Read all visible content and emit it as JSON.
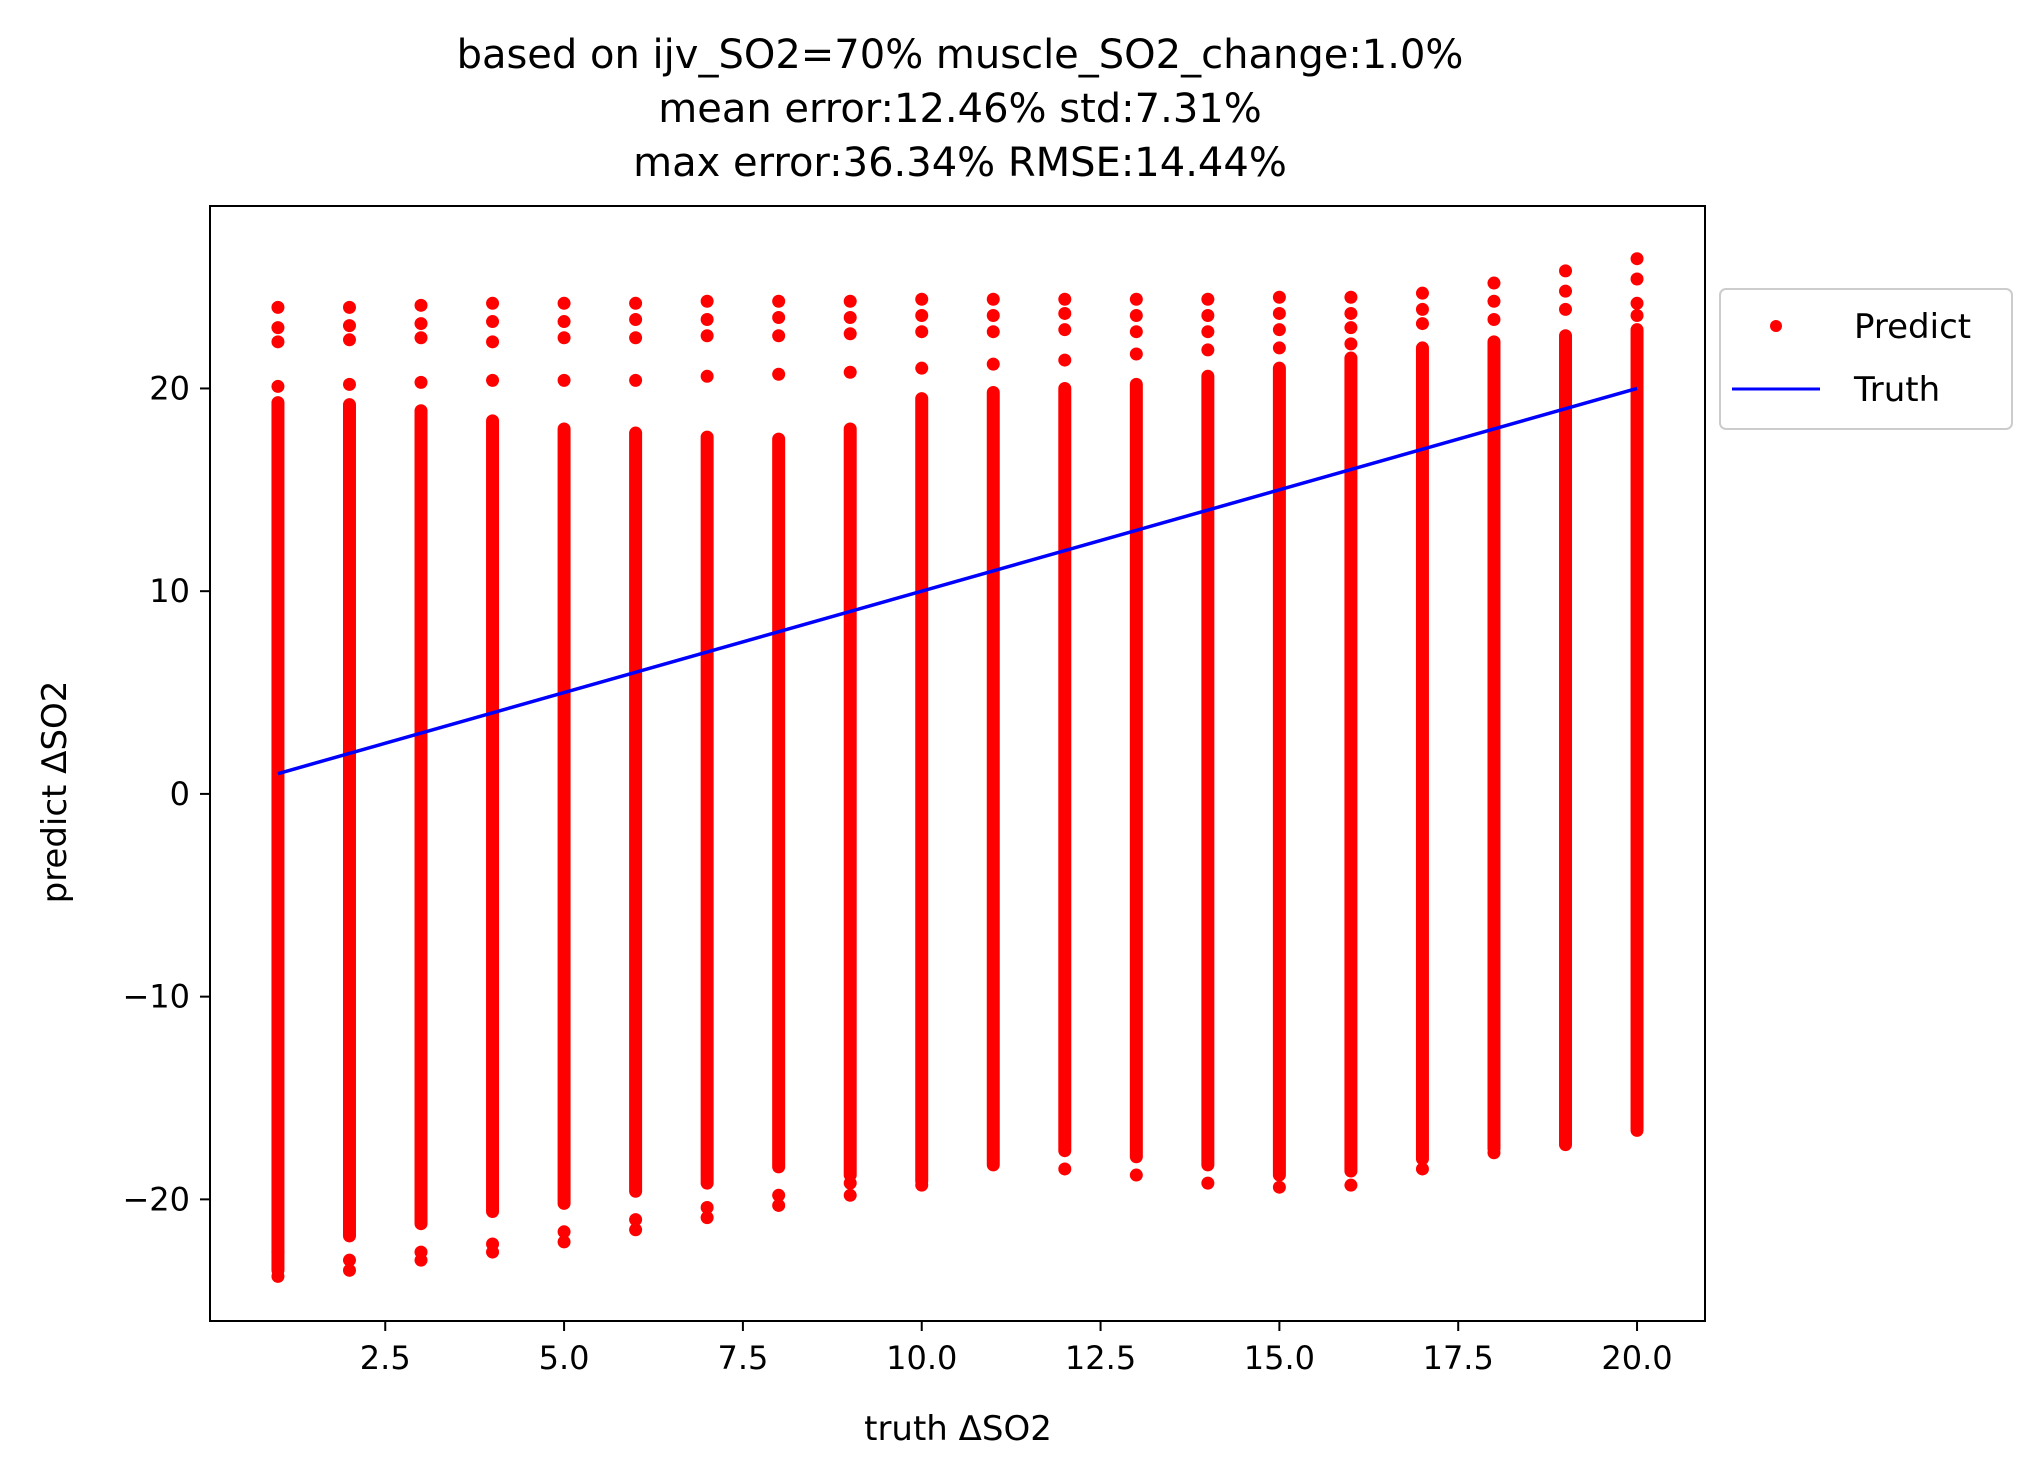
{
  "chart_data": {
    "type": "scatter",
    "title_lines": [
      "based on ijv_SO2=70% muscle_SO2_change:1.0%",
      "mean error:12.46% std:7.31%",
      "max error:36.34% RMSE:14.44%"
    ],
    "xlabel": "truth ΔSO2",
    "ylabel": "predict ΔSO2",
    "xlim": [
      0.05,
      20.95
    ],
    "ylim": [
      -26.0,
      29.0
    ],
    "xticks": [
      2.5,
      5.0,
      7.5,
      10.0,
      12.5,
      15.0,
      17.5,
      20.0
    ],
    "xtick_labels": [
      "2.5",
      "5.0",
      "7.5",
      "10.0",
      "12.5",
      "15.0",
      "17.5",
      "20.0"
    ],
    "yticks": [
      -20,
      -10,
      0,
      10,
      20
    ],
    "ytick_labels": [
      "−20",
      "−10",
      "0",
      "10",
      "20"
    ],
    "grid": false,
    "legend_placement": "outside-right-top",
    "series": [
      {
        "name": "Predict",
        "kind": "scatter",
        "color": "#ff0000",
        "x": [
          1,
          2,
          3,
          4,
          5,
          6,
          7,
          8,
          9,
          10,
          11,
          12,
          13,
          14,
          15,
          16,
          17,
          18,
          19,
          20
        ],
        "y_dense_min": [
          -23.5,
          -21.8,
          -21.2,
          -20.6,
          -20.2,
          -19.6,
          -19.2,
          -18.4,
          -18.8,
          -19.1,
          -18.2,
          -17.6,
          -17.9,
          -18.3,
          -18.8,
          -18.6,
          -18.0,
          -17.5,
          -17.2,
          -16.5
        ],
        "y_dense_max": [
          19.3,
          19.2,
          18.9,
          18.4,
          18.0,
          17.8,
          17.6,
          17.5,
          18.0,
          19.5,
          19.8,
          20.0,
          20.2,
          20.6,
          21.0,
          21.5,
          22.0,
          22.3,
          22.6,
          22.9
        ],
        "outliers": [
          [
            1,
            24.0
          ],
          [
            1,
            23.0
          ],
          [
            1,
            22.3
          ],
          [
            1,
            20.1
          ],
          [
            1,
            -23.8
          ],
          [
            1,
            -22.6
          ],
          [
            2,
            24.0
          ],
          [
            2,
            23.1
          ],
          [
            2,
            22.4
          ],
          [
            2,
            20.2
          ],
          [
            2,
            -23.5
          ],
          [
            2,
            -23.0
          ],
          [
            3,
            24.1
          ],
          [
            3,
            23.2
          ],
          [
            3,
            22.5
          ],
          [
            3,
            20.3
          ],
          [
            3,
            -23.0
          ],
          [
            3,
            -22.6
          ],
          [
            4,
            24.2
          ],
          [
            4,
            23.3
          ],
          [
            4,
            22.3
          ],
          [
            4,
            20.4
          ],
          [
            4,
            -22.6
          ],
          [
            4,
            -22.2
          ],
          [
            5,
            24.2
          ],
          [
            5,
            23.3
          ],
          [
            5,
            22.5
          ],
          [
            5,
            20.4
          ],
          [
            5,
            -22.1
          ],
          [
            5,
            -21.6
          ],
          [
            6,
            24.2
          ],
          [
            6,
            23.4
          ],
          [
            6,
            22.5
          ],
          [
            6,
            20.4
          ],
          [
            6,
            -21.5
          ],
          [
            6,
            -21.0
          ],
          [
            7,
            24.3
          ],
          [
            7,
            23.4
          ],
          [
            7,
            22.6
          ],
          [
            7,
            20.6
          ],
          [
            7,
            -20.9
          ],
          [
            7,
            -20.4
          ],
          [
            8,
            24.3
          ],
          [
            8,
            23.5
          ],
          [
            8,
            22.6
          ],
          [
            8,
            20.7
          ],
          [
            8,
            -20.3
          ],
          [
            8,
            -19.8
          ],
          [
            9,
            24.3
          ],
          [
            9,
            23.5
          ],
          [
            9,
            22.7
          ],
          [
            9,
            20.8
          ],
          [
            9,
            -19.8
          ],
          [
            9,
            -19.2
          ],
          [
            10,
            24.4
          ],
          [
            10,
            23.6
          ],
          [
            10,
            22.8
          ],
          [
            10,
            21.0
          ],
          [
            10,
            -19.3
          ],
          [
            11,
            24.4
          ],
          [
            11,
            23.6
          ],
          [
            11,
            22.8
          ],
          [
            11,
            21.2
          ],
          [
            11,
            -18.3
          ],
          [
            12,
            24.4
          ],
          [
            12,
            23.7
          ],
          [
            12,
            22.9
          ],
          [
            12,
            21.4
          ],
          [
            12,
            -18.5
          ],
          [
            13,
            24.4
          ],
          [
            13,
            23.6
          ],
          [
            13,
            22.8
          ],
          [
            13,
            21.7
          ],
          [
            13,
            -18.8
          ],
          [
            14,
            24.4
          ],
          [
            14,
            23.6
          ],
          [
            14,
            22.8
          ],
          [
            14,
            21.9
          ],
          [
            14,
            -19.2
          ],
          [
            15,
            24.5
          ],
          [
            15,
            23.7
          ],
          [
            15,
            22.9
          ],
          [
            15,
            22.0
          ],
          [
            15,
            -19.4
          ],
          [
            16,
            24.5
          ],
          [
            16,
            23.7
          ],
          [
            16,
            23.0
          ],
          [
            16,
            22.2
          ],
          [
            16,
            -19.3
          ],
          [
            17,
            24.7
          ],
          [
            17,
            23.9
          ],
          [
            17,
            23.2
          ],
          [
            17,
            -18.5
          ],
          [
            18,
            25.2
          ],
          [
            18,
            24.3
          ],
          [
            18,
            23.4
          ],
          [
            18,
            -17.7
          ],
          [
            19,
            25.8
          ],
          [
            19,
            24.8
          ],
          [
            19,
            23.9
          ],
          [
            19,
            -17.3
          ],
          [
            20,
            26.4
          ],
          [
            20,
            25.4
          ],
          [
            20,
            24.2
          ],
          [
            20,
            23.6
          ],
          [
            20,
            -16.6
          ]
        ]
      },
      {
        "name": "Truth",
        "kind": "line",
        "color": "#0000ff",
        "x": [
          1,
          20
        ],
        "y": [
          1,
          20
        ]
      }
    ]
  }
}
